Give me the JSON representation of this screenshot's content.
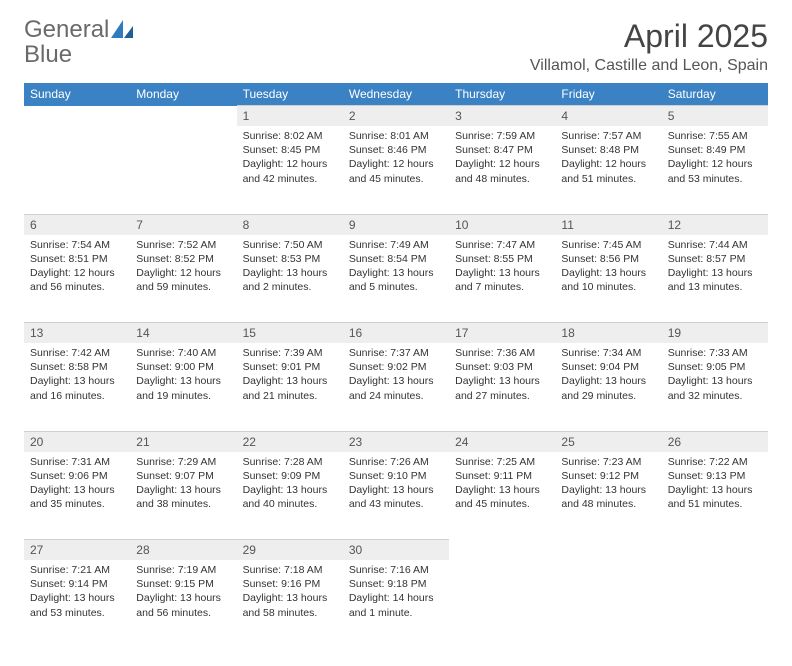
{
  "logo": {
    "line1": "General",
    "line2": "Blue"
  },
  "title": "April 2025",
  "location": "Villamol, Castille and Leon, Spain",
  "colors": {
    "header_bg": "#3a82c4",
    "header_text": "#ffffff",
    "daynum_bg": "#eeeeee",
    "body_text": "#333333",
    "logo_gray": "#6a6a6a",
    "logo_blue": "#2f7bbf"
  },
  "weekdays": [
    "Sunday",
    "Monday",
    "Tuesday",
    "Wednesday",
    "Thursday",
    "Friday",
    "Saturday"
  ],
  "weeks": [
    {
      "nums": [
        "",
        "",
        "1",
        "2",
        "3",
        "4",
        "5"
      ],
      "cells": [
        null,
        null,
        {
          "sunrise": "Sunrise: 8:02 AM",
          "sunset": "Sunset: 8:45 PM",
          "daylight": "Daylight: 12 hours and 42 minutes."
        },
        {
          "sunrise": "Sunrise: 8:01 AM",
          "sunset": "Sunset: 8:46 PM",
          "daylight": "Daylight: 12 hours and 45 minutes."
        },
        {
          "sunrise": "Sunrise: 7:59 AM",
          "sunset": "Sunset: 8:47 PM",
          "daylight": "Daylight: 12 hours and 48 minutes."
        },
        {
          "sunrise": "Sunrise: 7:57 AM",
          "sunset": "Sunset: 8:48 PM",
          "daylight": "Daylight: 12 hours and 51 minutes."
        },
        {
          "sunrise": "Sunrise: 7:55 AM",
          "sunset": "Sunset: 8:49 PM",
          "daylight": "Daylight: 12 hours and 53 minutes."
        }
      ]
    },
    {
      "nums": [
        "6",
        "7",
        "8",
        "9",
        "10",
        "11",
        "12"
      ],
      "cells": [
        {
          "sunrise": "Sunrise: 7:54 AM",
          "sunset": "Sunset: 8:51 PM",
          "daylight": "Daylight: 12 hours and 56 minutes."
        },
        {
          "sunrise": "Sunrise: 7:52 AM",
          "sunset": "Sunset: 8:52 PM",
          "daylight": "Daylight: 12 hours and 59 minutes."
        },
        {
          "sunrise": "Sunrise: 7:50 AM",
          "sunset": "Sunset: 8:53 PM",
          "daylight": "Daylight: 13 hours and 2 minutes."
        },
        {
          "sunrise": "Sunrise: 7:49 AM",
          "sunset": "Sunset: 8:54 PM",
          "daylight": "Daylight: 13 hours and 5 minutes."
        },
        {
          "sunrise": "Sunrise: 7:47 AM",
          "sunset": "Sunset: 8:55 PM",
          "daylight": "Daylight: 13 hours and 7 minutes."
        },
        {
          "sunrise": "Sunrise: 7:45 AM",
          "sunset": "Sunset: 8:56 PM",
          "daylight": "Daylight: 13 hours and 10 minutes."
        },
        {
          "sunrise": "Sunrise: 7:44 AM",
          "sunset": "Sunset: 8:57 PM",
          "daylight": "Daylight: 13 hours and 13 minutes."
        }
      ]
    },
    {
      "nums": [
        "13",
        "14",
        "15",
        "16",
        "17",
        "18",
        "19"
      ],
      "cells": [
        {
          "sunrise": "Sunrise: 7:42 AM",
          "sunset": "Sunset: 8:58 PM",
          "daylight": "Daylight: 13 hours and 16 minutes."
        },
        {
          "sunrise": "Sunrise: 7:40 AM",
          "sunset": "Sunset: 9:00 PM",
          "daylight": "Daylight: 13 hours and 19 minutes."
        },
        {
          "sunrise": "Sunrise: 7:39 AM",
          "sunset": "Sunset: 9:01 PM",
          "daylight": "Daylight: 13 hours and 21 minutes."
        },
        {
          "sunrise": "Sunrise: 7:37 AM",
          "sunset": "Sunset: 9:02 PM",
          "daylight": "Daylight: 13 hours and 24 minutes."
        },
        {
          "sunrise": "Sunrise: 7:36 AM",
          "sunset": "Sunset: 9:03 PM",
          "daylight": "Daylight: 13 hours and 27 minutes."
        },
        {
          "sunrise": "Sunrise: 7:34 AM",
          "sunset": "Sunset: 9:04 PM",
          "daylight": "Daylight: 13 hours and 29 minutes."
        },
        {
          "sunrise": "Sunrise: 7:33 AM",
          "sunset": "Sunset: 9:05 PM",
          "daylight": "Daylight: 13 hours and 32 minutes."
        }
      ]
    },
    {
      "nums": [
        "20",
        "21",
        "22",
        "23",
        "24",
        "25",
        "26"
      ],
      "cells": [
        {
          "sunrise": "Sunrise: 7:31 AM",
          "sunset": "Sunset: 9:06 PM",
          "daylight": "Daylight: 13 hours and 35 minutes."
        },
        {
          "sunrise": "Sunrise: 7:29 AM",
          "sunset": "Sunset: 9:07 PM",
          "daylight": "Daylight: 13 hours and 38 minutes."
        },
        {
          "sunrise": "Sunrise: 7:28 AM",
          "sunset": "Sunset: 9:09 PM",
          "daylight": "Daylight: 13 hours and 40 minutes."
        },
        {
          "sunrise": "Sunrise: 7:26 AM",
          "sunset": "Sunset: 9:10 PM",
          "daylight": "Daylight: 13 hours and 43 minutes."
        },
        {
          "sunrise": "Sunrise: 7:25 AM",
          "sunset": "Sunset: 9:11 PM",
          "daylight": "Daylight: 13 hours and 45 minutes."
        },
        {
          "sunrise": "Sunrise: 7:23 AM",
          "sunset": "Sunset: 9:12 PM",
          "daylight": "Daylight: 13 hours and 48 minutes."
        },
        {
          "sunrise": "Sunrise: 7:22 AM",
          "sunset": "Sunset: 9:13 PM",
          "daylight": "Daylight: 13 hours and 51 minutes."
        }
      ]
    },
    {
      "nums": [
        "27",
        "28",
        "29",
        "30",
        "",
        "",
        ""
      ],
      "cells": [
        {
          "sunrise": "Sunrise: 7:21 AM",
          "sunset": "Sunset: 9:14 PM",
          "daylight": "Daylight: 13 hours and 53 minutes."
        },
        {
          "sunrise": "Sunrise: 7:19 AM",
          "sunset": "Sunset: 9:15 PM",
          "daylight": "Daylight: 13 hours and 56 minutes."
        },
        {
          "sunrise": "Sunrise: 7:18 AM",
          "sunset": "Sunset: 9:16 PM",
          "daylight": "Daylight: 13 hours and 58 minutes."
        },
        {
          "sunrise": "Sunrise: 7:16 AM",
          "sunset": "Sunset: 9:18 PM",
          "daylight": "Daylight: 14 hours and 1 minute."
        },
        null,
        null,
        null
      ]
    }
  ]
}
